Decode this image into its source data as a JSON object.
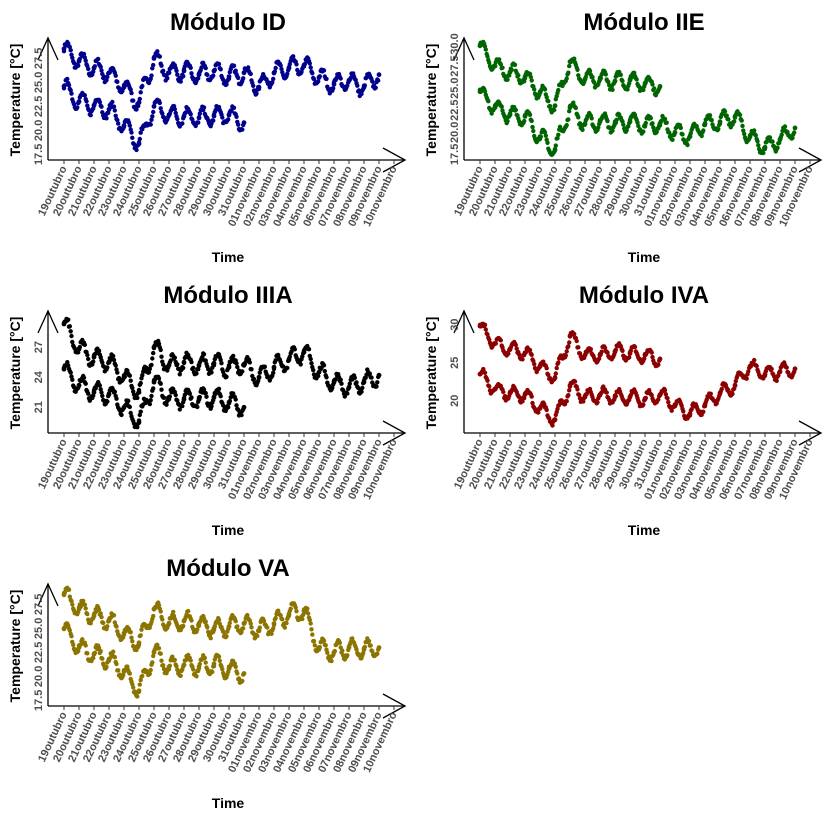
{
  "chart_data": [
    {
      "type": "scatter",
      "title": "Módulo ID",
      "xlabel": "Time",
      "ylabel": "Temperature [°C]",
      "color": "#00008b",
      "x_ticks": [
        "19outubro",
        "20outubro",
        "21outubro",
        "22outubro",
        "23outubro",
        "24outubro",
        "25outubro",
        "26outubro",
        "27outubro",
        "28outubro",
        "29outubro",
        "30outubro",
        "31outubro",
        "01novembro",
        "02novembro",
        "03novembro",
        "04novembro",
        "05novembro",
        "06novembro",
        "07novembro",
        "08novembro",
        "09novembro",
        "10novembro"
      ],
      "y_ticks": [
        "17.5",
        "20.0",
        "22.5",
        "25.0",
        "27.5"
      ],
      "ylim": [
        17.5,
        29.0
      ],
      "series": [
        {
          "x": [
            "2021-10-19",
            "2021-10-20",
            "2021-10-21",
            "2021-10-22",
            "2021-10-23",
            "2021-10-24",
            "2021-10-25",
            "2021-10-26",
            "2021-10-27",
            "2021-10-28",
            "2021-10-29",
            "2021-10-30",
            "2021-10-31",
            "2021-11-01",
            "2021-11-02",
            "2021-11-03",
            "2021-11-04",
            "2021-11-05",
            "2021-11-06",
            "2021-11-07",
            "2021-11-08",
            "2021-11-09"
          ],
          "y": [
            28.5,
            27.2,
            26.5,
            26.0,
            24.5,
            22.9,
            27.5,
            26.0,
            26.2,
            25.8,
            26.2,
            25.6,
            26.0,
            24.5,
            26.0,
            26.5,
            26.8,
            25.5,
            24.8,
            25.2,
            24.5,
            25.8
          ]
        },
        {
          "x": [
            "2021-10-19",
            "2021-10-20",
            "2021-10-21",
            "2021-10-22",
            "2021-10-23",
            "2021-10-24",
            "2021-10-25",
            "2021-10-26",
            "2021-10-27",
            "2021-10-28",
            "2021-10-29",
            "2021-10-30",
            "2021-10-31"
          ],
          "y": [
            24.6,
            23.0,
            22.6,
            22.2,
            20.5,
            18.6,
            22.5,
            21.6,
            21.5,
            21.3,
            21.5,
            21.6,
            20.8
          ]
        }
      ]
    },
    {
      "type": "scatter",
      "title": "Módulo IIE",
      "xlabel": "Time",
      "ylabel": "Temperature [°C]",
      "color": "#006400",
      "x_ticks": [
        "19outubro",
        "20outubro",
        "21outubro",
        "22outubro",
        "23outubro",
        "24outubro",
        "25outubro",
        "26outubro",
        "27outubro",
        "28outubro",
        "29outubro",
        "30outubro",
        "31outubro",
        "01novembro",
        "02novembro",
        "03novembro",
        "04novembro",
        "05novembro",
        "06novembro",
        "07novembro",
        "08novembro",
        "09novembro",
        "10novembro"
      ],
      "y_ticks": [
        "17.5",
        "20.0",
        "22.5",
        "25.0",
        "27.5",
        "30.0"
      ],
      "ylim": [
        17.5,
        30.0
      ],
      "series": [
        {
          "x": [
            "2021-10-19",
            "2021-10-20",
            "2021-10-21",
            "2021-10-22",
            "2021-10-23",
            "2021-10-24",
            "2021-10-25",
            "2021-10-26",
            "2021-10-27",
            "2021-10-28",
            "2021-10-29",
            "2021-10-30",
            "2021-10-31"
          ],
          "y": [
            29.8,
            27.5,
            26.8,
            26.3,
            24.5,
            23.0,
            28.0,
            26.0,
            26.0,
            25.8,
            25.9,
            25.5,
            25.2
          ]
        },
        {
          "x": [
            "2021-10-19",
            "2021-10-20",
            "2021-10-21",
            "2021-10-22",
            "2021-10-23",
            "2021-10-24",
            "2021-10-25",
            "2021-10-26",
            "2021-10-27",
            "2021-10-28",
            "2021-10-29",
            "2021-10-30",
            "2021-10-31",
            "2021-11-01",
            "2021-11-02",
            "2021-11-03",
            "2021-11-04",
            "2021-11-05",
            "2021-11-06",
            "2021-11-07",
            "2021-11-08",
            "2021-11-09"
          ],
          "y": [
            24.6,
            22.8,
            22.0,
            21.8,
            19.5,
            18.0,
            22.8,
            21.0,
            21.2,
            21.0,
            21.2,
            20.8,
            21.0,
            20.0,
            19.5,
            21.0,
            21.2,
            21.8,
            19.5,
            18.3,
            19.2,
            20.5
          ]
        }
      ]
    },
    {
      "type": "scatter",
      "title": "Módulo IIIA",
      "xlabel": "Time",
      "ylabel": "Temperature [°C]",
      "color": "#000000",
      "x_ticks": [
        "19outubro",
        "20outubro",
        "21outubro",
        "22outubro",
        "23outubro",
        "24outubro",
        "25outubro",
        "26outubro",
        "27outubro",
        "28outubro",
        "29outubro",
        "30outubro",
        "31outubro",
        "01novembro",
        "02novembro",
        "03novembro",
        "04novembro",
        "05novembro",
        "06novembro",
        "07novembro",
        "08novembro",
        "09novembro",
        "10novembro"
      ],
      "y_ticks": [
        "21",
        "24",
        "27"
      ],
      "ylim": [
        19.0,
        30.0
      ],
      "series": [
        {
          "x": [
            "2021-10-19",
            "2021-10-20",
            "2021-10-21",
            "2021-10-22",
            "2021-10-23",
            "2021-10-24",
            "2021-10-25",
            "2021-10-26",
            "2021-10-27",
            "2021-10-28",
            "2021-10-29",
            "2021-10-30",
            "2021-10-31",
            "2021-11-01",
            "2021-11-02",
            "2021-11-03",
            "2021-11-04",
            "2021-11-05",
            "2021-11-06",
            "2021-11-07",
            "2021-11-08",
            "2021-11-09"
          ],
          "y": [
            29.3,
            26.8,
            26.0,
            25.5,
            24.0,
            22.5,
            27.0,
            25.2,
            25.5,
            25.2,
            25.4,
            25.0,
            25.3,
            24.0,
            25.0,
            25.8,
            26.5,
            24.5,
            23.5,
            23.0,
            23.5,
            24.2
          ]
        },
        {
          "x": [
            "2021-10-19",
            "2021-10-20",
            "2021-10-21",
            "2021-10-22",
            "2021-10-23",
            "2021-10-24",
            "2021-10-25",
            "2021-10-26",
            "2021-10-27",
            "2021-10-28",
            "2021-10-29",
            "2021-10-30",
            "2021-10-31"
          ],
          "y": [
            24.8,
            23.2,
            22.5,
            22.3,
            21.0,
            19.5,
            23.5,
            22.0,
            21.8,
            21.8,
            22.0,
            21.5,
            21.0
          ]
        }
      ]
    },
    {
      "type": "scatter",
      "title": "Módulo IVA",
      "xlabel": "Time",
      "ylabel": "Temperature [°C]",
      "color": "#8b0000",
      "x_ticks": [
        "19outubro",
        "20outubro",
        "21outubro",
        "22outubro",
        "23outubro",
        "24outubro",
        "25outubro",
        "26outubro",
        "27outubro",
        "28outubro",
        "29outubro",
        "30outubro",
        "31outubro",
        "01novembro",
        "02novembro",
        "03novembro",
        "04novembro",
        "05novembro",
        "06novembro",
        "07novembro",
        "08novembro",
        "09novembro",
        "10novembro"
      ],
      "y_ticks": [
        "20",
        "25",
        "30"
      ],
      "ylim": [
        16.5,
        31.0
      ],
      "series": [
        {
          "x": [
            "2021-10-19",
            "2021-10-20",
            "2021-10-21",
            "2021-10-22",
            "2021-10-23",
            "2021-10-24",
            "2021-10-25",
            "2021-10-26",
            "2021-10-27",
            "2021-10-28",
            "2021-10-29",
            "2021-10-30",
            "2021-10-31"
          ],
          "y": [
            29.8,
            27.5,
            26.8,
            26.3,
            24.5,
            23.0,
            28.5,
            26.0,
            26.0,
            26.5,
            26.2,
            26.0,
            25.5
          ]
        },
        {
          "x": [
            "2021-10-19",
            "2021-10-20",
            "2021-10-21",
            "2021-10-22",
            "2021-10-23",
            "2021-10-24",
            "2021-10-25",
            "2021-10-26",
            "2021-10-27",
            "2021-10-28",
            "2021-10-29",
            "2021-10-30",
            "2021-10-31",
            "2021-11-01",
            "2021-11-02",
            "2021-11-03",
            "2021-11-04",
            "2021-11-05",
            "2021-11-06",
            "2021-11-07",
            "2021-11-08",
            "2021-11-09"
          ],
          "y": [
            23.5,
            21.5,
            21.0,
            20.8,
            19.0,
            17.5,
            22.0,
            20.5,
            20.8,
            20.5,
            20.5,
            20.2,
            20.8,
            19.5,
            18.3,
            19.5,
            21.0,
            22.0,
            24.5,
            23.5,
            23.8,
            24.2
          ]
        }
      ]
    },
    {
      "type": "scatter",
      "title": "Módulo VA",
      "xlabel": "Time",
      "ylabel": "Temperature [°C]",
      "color": "#8b7500",
      "x_ticks": [
        "19outubro",
        "20outubro",
        "21outubro",
        "22outubro",
        "23outubro",
        "24outubro",
        "25outubro",
        "26outubro",
        "27outubro",
        "28outubro",
        "29outubro",
        "30outubro",
        "31outubro",
        "01novembro",
        "02novembro",
        "03novembro",
        "04novembro",
        "05novembro",
        "06novembro",
        "07novembro",
        "08novembro",
        "09novembro",
        "10novembro"
      ],
      "y_ticks": [
        "17.5",
        "20.0",
        "22.5",
        "25.0",
        "27.5"
      ],
      "ylim": [
        17.5,
        29.0
      ],
      "series": [
        {
          "x": [
            "2021-10-19",
            "2021-10-20",
            "2021-10-21",
            "2021-10-22",
            "2021-10-23",
            "2021-10-24",
            "2021-10-25",
            "2021-10-26",
            "2021-10-27",
            "2021-10-28",
            "2021-10-29",
            "2021-10-30",
            "2021-10-31",
            "2021-11-01",
            "2021-11-02",
            "2021-11-03",
            "2021-11-04",
            "2021-11-05",
            "2021-11-06",
            "2021-11-07",
            "2021-11-08",
            "2021-11-09"
          ],
          "y": [
            28.5,
            27.0,
            26.3,
            25.8,
            24.5,
            23.5,
            27.0,
            25.5,
            25.8,
            25.5,
            25.0,
            25.2,
            25.5,
            24.8,
            25.5,
            26.5,
            26.8,
            23.0,
            22.5,
            23.0,
            22.8,
            23.0
          ]
        },
        {
          "x": [
            "2021-10-19",
            "2021-10-20",
            "2021-10-21",
            "2021-10-22",
            "2021-10-23",
            "2021-10-24",
            "2021-10-25",
            "2021-10-26",
            "2021-10-27",
            "2021-10-28",
            "2021-10-29",
            "2021-10-30",
            "2021-10-31"
          ],
          "y": [
            25.0,
            23.0,
            22.3,
            21.8,
            20.5,
            18.5,
            22.5,
            21.0,
            21.2,
            21.0,
            21.3,
            20.8,
            20.3
          ]
        }
      ]
    }
  ]
}
